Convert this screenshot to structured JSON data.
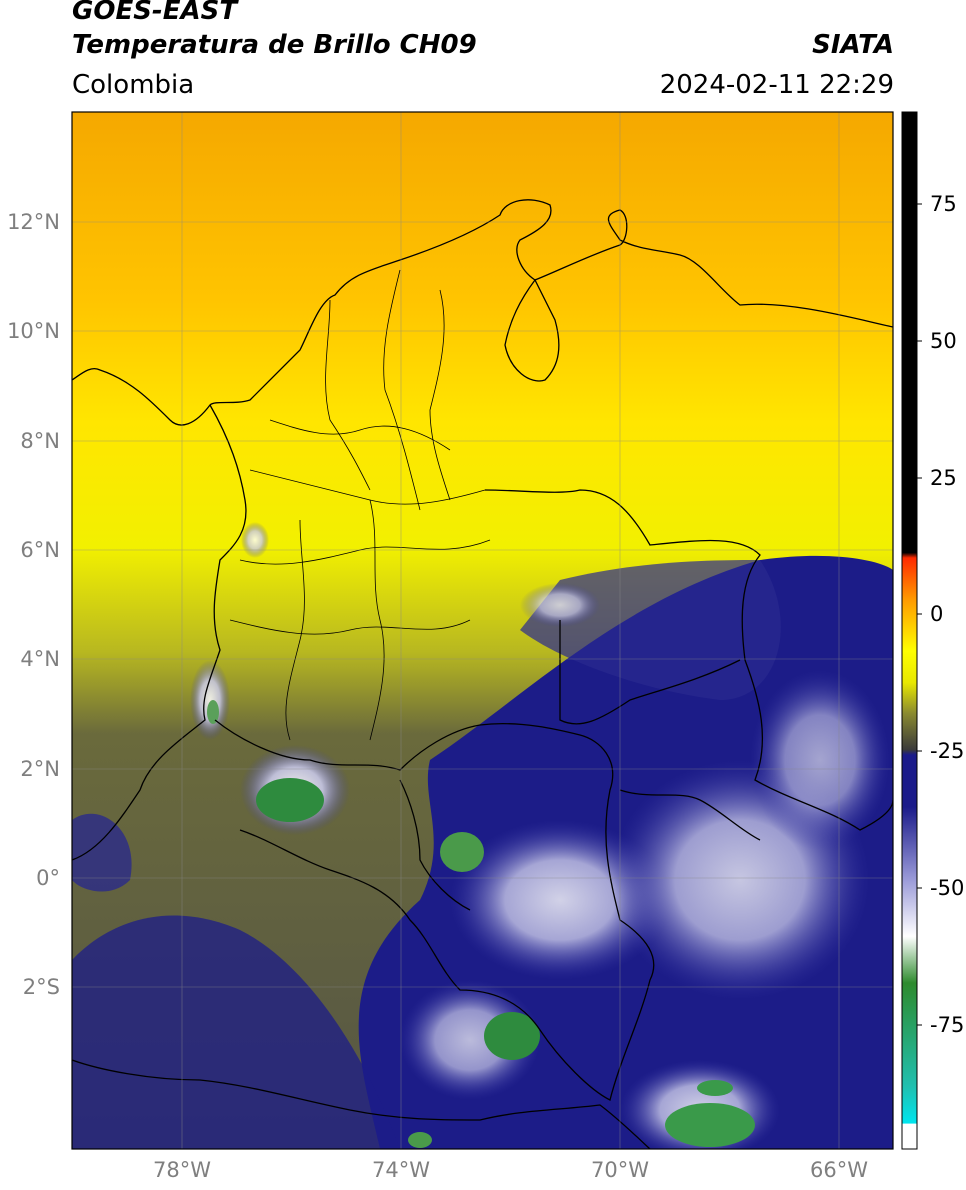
{
  "header": {
    "satellite": "GOES-EAST",
    "product": "Temperatura de Brillo CH09",
    "region": "Colombia",
    "source": "SIATA",
    "datetime": "2024-02-11 22:29"
  },
  "map": {
    "lon_range": [
      -80,
      -65
    ],
    "lat_range": [
      -5,
      14
    ],
    "lat_ticks": [
      "12°N",
      "10°N",
      "8°N",
      "6°N",
      "4°N",
      "2°N",
      "0°",
      "2°S"
    ],
    "lon_ticks": [
      "78°W",
      "74°W",
      "70°W",
      "66°W"
    ]
  },
  "colorbar": {
    "ticks": [
      "75",
      "50",
      "25",
      "0",
      "-25",
      "-50",
      "-75"
    ],
    "colors": [
      "#000000",
      "#ff2a00",
      "#ffd700",
      "#ffff00",
      "#3a3a3a",
      "#1b1b8a",
      "#ffffff",
      "#2e8b2e",
      "#20c0b0",
      "#00e5ee"
    ]
  }
}
